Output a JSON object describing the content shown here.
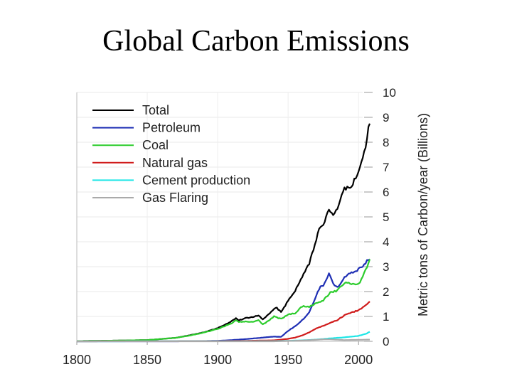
{
  "slide": {
    "title": "Global Carbon Emissions"
  },
  "chart_data": {
    "type": "line",
    "title": "",
    "xlabel": "",
    "ylabel": "Metric tons of Carbon/year (Billions)",
    "xlim": [
      1800,
      2010
    ],
    "ylim": [
      0,
      10
    ],
    "x_ticks": [
      1800,
      1850,
      1900,
      1950,
      2000
    ],
    "y_ticks": [
      0,
      1,
      2,
      3,
      4,
      5,
      6,
      7,
      8,
      9,
      10
    ],
    "legend_position": "top-left",
    "series": [
      {
        "name": "Total",
        "color": "#000000",
        "x": [
          1800,
          1830,
          1850,
          1870,
          1880,
          1890,
          1900,
          1905,
          1910,
          1913,
          1915,
          1920,
          1925,
          1929,
          1932,
          1935,
          1940,
          1942,
          1945,
          1947,
          1950,
          1955,
          1960,
          1965,
          1970,
          1973,
          1975,
          1979,
          1982,
          1985,
          1990,
          1995,
          2000,
          2003,
          2006,
          2008
        ],
        "y": [
          0.01,
          0.03,
          0.05,
          0.14,
          0.24,
          0.36,
          0.53,
          0.66,
          0.82,
          0.94,
          0.85,
          0.93,
          0.98,
          1.05,
          0.88,
          1.02,
          1.3,
          1.35,
          1.16,
          1.35,
          1.63,
          2.04,
          2.58,
          3.13,
          4.08,
          4.65,
          4.6,
          5.35,
          5.05,
          5.4,
          6.1,
          6.3,
          6.75,
          7.3,
          8.2,
          8.75
        ]
      },
      {
        "name": "Petroleum",
        "color": "#1f2fb4",
        "x": [
          1800,
          1870,
          1890,
          1900,
          1910,
          1920,
          1930,
          1940,
          1945,
          1950,
          1955,
          1960,
          1965,
          1970,
          1973,
          1975,
          1979,
          1982,
          1985,
          1990,
          1995,
          2000,
          2003,
          2006,
          2008
        ],
        "y": [
          0,
          0,
          0.01,
          0.02,
          0.05,
          0.09,
          0.14,
          0.19,
          0.18,
          0.42,
          0.61,
          0.85,
          1.15,
          1.84,
          2.25,
          2.25,
          2.7,
          2.3,
          2.15,
          2.6,
          2.75,
          2.9,
          3.0,
          3.25,
          3.3
        ]
      },
      {
        "name": "Coal",
        "color": "#2ccc2c",
        "x": [
          1800,
          1830,
          1850,
          1870,
          1880,
          1890,
          1900,
          1910,
          1913,
          1915,
          1920,
          1925,
          1929,
          1932,
          1935,
          1940,
          1945,
          1950,
          1955,
          1960,
          1965,
          1970,
          1975,
          1980,
          1985,
          1990,
          1995,
          2000,
          2003,
          2006,
          2008
        ],
        "y": [
          0.01,
          0.03,
          0.05,
          0.14,
          0.23,
          0.35,
          0.5,
          0.72,
          0.85,
          0.78,
          0.8,
          0.78,
          0.85,
          0.68,
          0.78,
          1.0,
          0.9,
          1.07,
          1.13,
          1.41,
          1.38,
          1.55,
          1.65,
          1.95,
          2.05,
          2.35,
          2.3,
          2.3,
          2.6,
          3.0,
          3.3
        ]
      },
      {
        "name": "Natural gas",
        "color": "#d01c1c",
        "x": [
          1800,
          1900,
          1920,
          1930,
          1940,
          1950,
          1955,
          1960,
          1965,
          1970,
          1975,
          1980,
          1985,
          1990,
          1995,
          2000,
          2005,
          2008
        ],
        "y": [
          0,
          0.01,
          0.02,
          0.03,
          0.04,
          0.1,
          0.15,
          0.24,
          0.36,
          0.52,
          0.62,
          0.75,
          0.85,
          1.05,
          1.15,
          1.25,
          1.45,
          1.6
        ]
      },
      {
        "name": "Cement production",
        "color": "#1ee6e6",
        "x": [
          1800,
          1920,
          1940,
          1950,
          1960,
          1970,
          1980,
          1990,
          2000,
          2005,
          2008
        ],
        "y": [
          0,
          0.005,
          0.01,
          0.02,
          0.04,
          0.07,
          0.12,
          0.16,
          0.22,
          0.3,
          0.38
        ]
      },
      {
        "name": "Gas Flaring",
        "color": "#aaaaaa",
        "x": [
          1800,
          1940,
          1960,
          1970,
          1975,
          1980,
          1990,
          2000,
          2008
        ],
        "y": [
          0,
          0,
          0.03,
          0.06,
          0.08,
          0.08,
          0.05,
          0.06,
          0.07
        ]
      }
    ]
  }
}
